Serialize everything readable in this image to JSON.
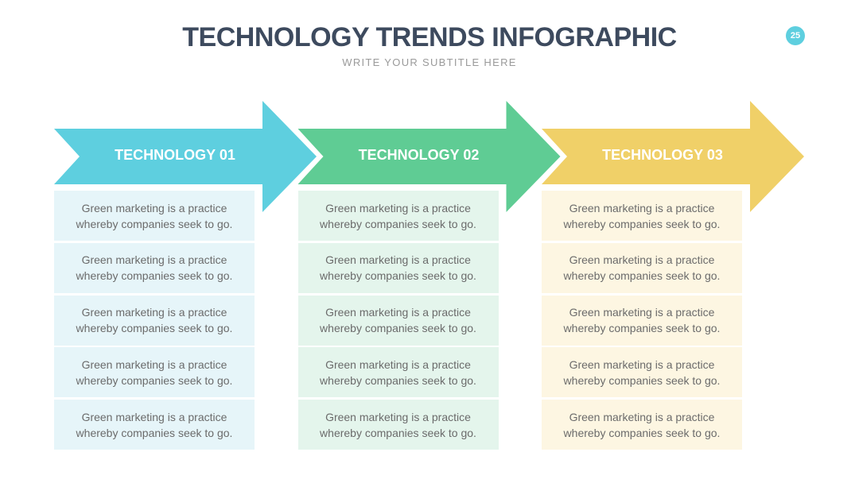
{
  "header": {
    "title": "TECHNOLOGY TRENDS INFOGRAPHIC",
    "subtitle": "WRITE YOUR SUBTITLE HERE",
    "page_number": "25"
  },
  "columns": [
    {
      "title": "TECHNOLOGY 01",
      "items": [
        "Green marketing is a practice whereby companies seek to go.",
        "Green marketing is a practice whereby companies seek to go.",
        "Green marketing is a practice whereby companies seek to go.",
        "Green marketing is a practice whereby companies seek to go.",
        "Green marketing is a practice whereby companies seek to go."
      ]
    },
    {
      "title": "TECHNOLOGY 02",
      "items": [
        "Green marketing is a practice whereby companies seek to go.",
        "Green marketing is a practice whereby companies seek to go.",
        "Green marketing is a practice whereby companies seek to go.",
        "Green marketing is a practice whereby companies seek to go.",
        "Green marketing is a practice whereby companies seek to go."
      ]
    },
    {
      "title": "TECHNOLOGY 03",
      "items": [
        "Green marketing is a practice whereby companies seek to go.",
        "Green marketing is a practice whereby companies seek to go.",
        "Green marketing is a practice whereby companies seek to go.",
        "Green marketing is a practice whereby companies seek to go.",
        "Green marketing is a practice whereby companies seek to go."
      ]
    }
  ]
}
